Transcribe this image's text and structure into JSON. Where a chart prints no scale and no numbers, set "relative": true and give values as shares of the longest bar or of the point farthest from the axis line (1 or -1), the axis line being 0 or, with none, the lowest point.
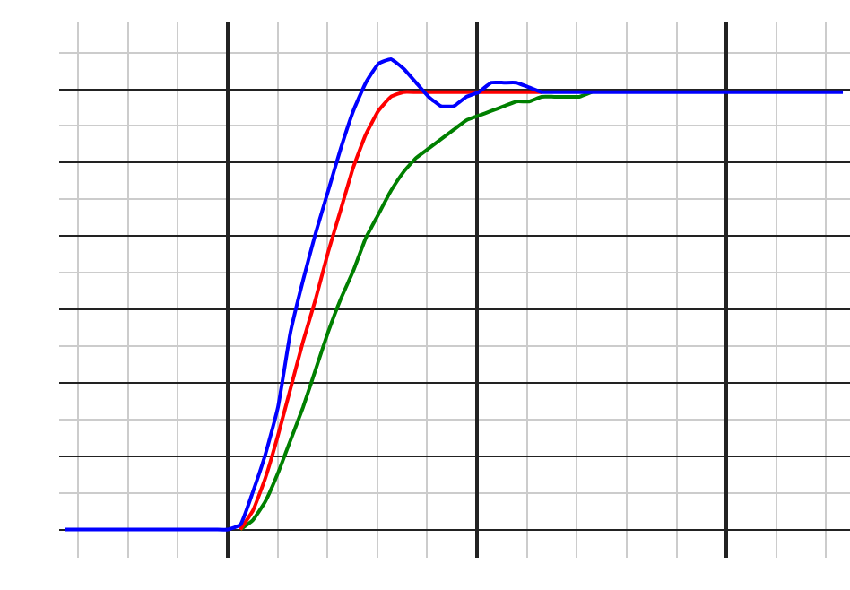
{
  "chart_data": {
    "type": "line",
    "relative": true,
    "grid": true,
    "categories": [
      null,
      null,
      null,
      null,
      null,
      null,
      null,
      null,
      null,
      null,
      null,
      null,
      null,
      null,
      null,
      null,
      null,
      null,
      null,
      null,
      null,
      null,
      null,
      null,
      null,
      null,
      null,
      null,
      null,
      null,
      null,
      null,
      null,
      null,
      null,
      null,
      null,
      null,
      null,
      null,
      null,
      null,
      null,
      null,
      null,
      null,
      null,
      null,
      null,
      null,
      null,
      null,
      null,
      null,
      null,
      null,
      null,
      null,
      null,
      null,
      null,
      null,
      null
    ],
    "series": [
      {
        "color": "#008000",
        "values": [
          null,
          null,
          null,
          null,
          null,
          null,
          null,
          null,
          null,
          null,
          null,
          null,
          null,
          null,
          0,
          0.02,
          0.06,
          0.12,
          0.19,
          0.26,
          0.34,
          0.42,
          0.49,
          0.55,
          0.62,
          0.67,
          0.72,
          0.76,
          0.79,
          0.81,
          0.83,
          0.85,
          0.87,
          0.88,
          0.89,
          0.9,
          0.91,
          0.91,
          0.92,
          0.92,
          0.92,
          0.92,
          0.93,
          null,
          null,
          null,
          null,
          null,
          null,
          null,
          null,
          null,
          null,
          null,
          null,
          null,
          null,
          null,
          null,
          null,
          null,
          null,
          null
        ]
      },
      {
        "color": "#ff0000",
        "values": [
          null,
          null,
          null,
          null,
          null,
          null,
          null,
          null,
          null,
          null,
          null,
          null,
          null,
          null,
          0,
          0.04,
          0.11,
          0.2,
          0.3,
          0.4,
          0.49,
          0.59,
          0.68,
          0.77,
          0.84,
          0.89,
          0.92,
          0.93,
          0.93,
          0.93,
          0.93,
          0.93,
          0.93,
          0.93,
          0.93,
          0.93,
          0.93,
          0.93,
          0.93,
          null,
          null,
          null,
          null,
          null,
          null,
          null,
          null,
          null,
          null,
          null,
          null,
          null,
          null,
          null,
          null,
          null,
          null,
          null,
          null,
          null,
          null,
          null,
          null
        ]
      },
      {
        "color": "#0000ff",
        "values": [
          0,
          0,
          0,
          0,
          0,
          0,
          0,
          0,
          0,
          0,
          0,
          0,
          0,
          0,
          0.01,
          0.08,
          0.16,
          0.26,
          0.42,
          0.53,
          0.63,
          0.72,
          0.81,
          0.89,
          0.95,
          0.99,
          1,
          0.98,
          0.95,
          0.92,
          0.9,
          0.9,
          0.92,
          0.93,
          0.95,
          0.95,
          0.95,
          0.94,
          0.93,
          0.93,
          0.93,
          0.93,
          0.93,
          0.93,
          0.93,
          0.93,
          0.93,
          0.93,
          0.93,
          0.93,
          0.93,
          0.93,
          0.93,
          0.93,
          0.93,
          0.93,
          0.93,
          0.93,
          0.93,
          0.93,
          0.93,
          0.93,
          0.93
        ]
      }
    ]
  }
}
